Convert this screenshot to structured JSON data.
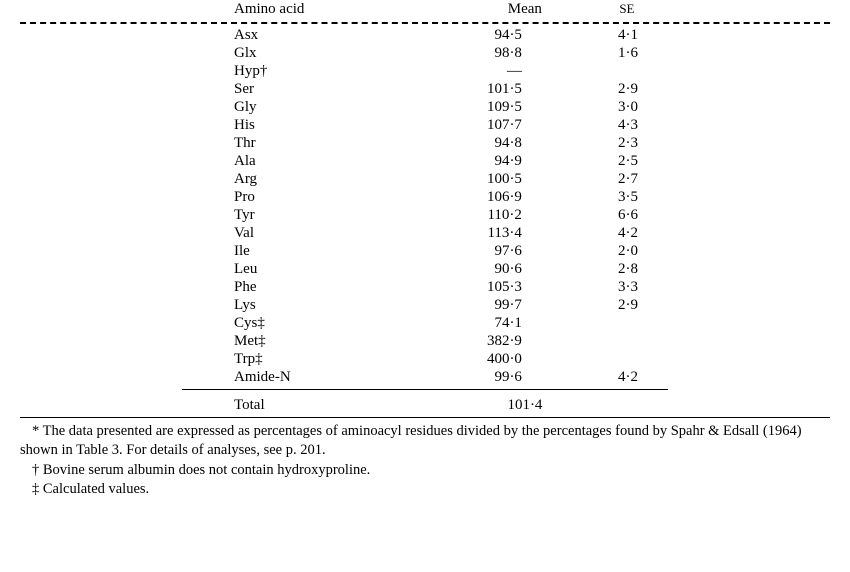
{
  "table": {
    "headers": {
      "amino_acid": "Amino acid",
      "mean": "Mean",
      "se": "SE"
    },
    "rows": [
      {
        "aa": "Asx",
        "mean": "94·5",
        "se": "4·1"
      },
      {
        "aa": "Glx",
        "mean": "98·8",
        "se": "1·6"
      },
      {
        "aa": "Hyp†",
        "mean": "—",
        "se": ""
      },
      {
        "aa": "Ser",
        "mean": "101·5",
        "se": "2·9"
      },
      {
        "aa": "Gly",
        "mean": "109·5",
        "se": "3·0"
      },
      {
        "aa": "His",
        "mean": "107·7",
        "se": "4·3"
      },
      {
        "aa": "Thr",
        "mean": "94·8",
        "se": "2·3"
      },
      {
        "aa": "Ala",
        "mean": "94·9",
        "se": "2·5"
      },
      {
        "aa": "Arg",
        "mean": "100·5",
        "se": "2·7"
      },
      {
        "aa": "Pro",
        "mean": "106·9",
        "se": "3·5"
      },
      {
        "aa": "Tyr",
        "mean": "110·2",
        "se": "6·6"
      },
      {
        "aa": "Val",
        "mean": "113·4",
        "se": "4·2"
      },
      {
        "aa": "Ile",
        "mean": "97·6",
        "se": "2·0"
      },
      {
        "aa": "Leu",
        "mean": "90·6",
        "se": "2·8"
      },
      {
        "aa": "Phe",
        "mean": "105·3",
        "se": "3·3"
      },
      {
        "aa": "Lys",
        "mean": "99·7",
        "se": "2·9"
      },
      {
        "aa": "Cys‡",
        "mean": "74·1",
        "se": ""
      },
      {
        "aa": "Met‡",
        "mean": "382·9",
        "se": ""
      },
      {
        "aa": "Trp‡",
        "mean": "400·0",
        "se": ""
      },
      {
        "aa": "Amide-N",
        "mean": "99·6",
        "se": "4·2"
      }
    ],
    "total": {
      "label": "Total",
      "mean": "101·4",
      "se": ""
    }
  },
  "footnotes": {
    "star": "* The data presented are expressed as percentages of aminoacyl residues divided by the percentages found by Spahr & Edsall (1964) shown in Table 3. For details of analyses, see p. 201.",
    "dagger": "† Bovine serum albumin does not contain hydroxyproline.",
    "ddagger": "‡ Calculated values."
  }
}
